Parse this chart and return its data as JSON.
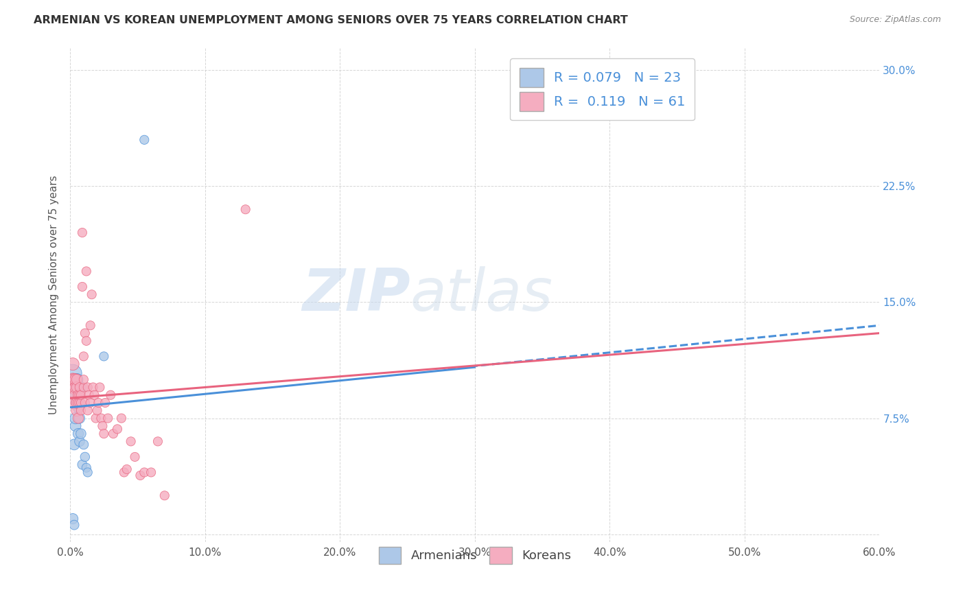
{
  "title": "ARMENIAN VS KOREAN UNEMPLOYMENT AMONG SENIORS OVER 75 YEARS CORRELATION CHART",
  "source": "Source: ZipAtlas.com",
  "ylabel": "Unemployment Among Seniors over 75 years",
  "xlim": [
    0.0,
    0.6
  ],
  "ylim": [
    -0.005,
    0.315
  ],
  "xticks": [
    0.0,
    0.1,
    0.2,
    0.3,
    0.4,
    0.5,
    0.6
  ],
  "xtick_labels": [
    "0.0%",
    "10.0%",
    "20.0%",
    "30.0%",
    "40.0%",
    "50.0%",
    "60.0%"
  ],
  "yticks": [
    0.0,
    0.075,
    0.15,
    0.225,
    0.3
  ],
  "ytick_labels": [
    "",
    "7.5%",
    "15.0%",
    "22.5%",
    "30.0%"
  ],
  "armenian_R": "0.079",
  "armenian_N": "23",
  "korean_R": "0.119",
  "korean_N": "61",
  "armenian_color": "#adc8e8",
  "korean_color": "#f5adc0",
  "trend_armenian_color": "#4a90d9",
  "trend_korean_color": "#e8637e",
  "watermark_zip": "ZIP",
  "watermark_atlas": "atlas",
  "armenian_x": [
    0.002,
    0.002,
    0.003,
    0.003,
    0.004,
    0.004,
    0.004,
    0.005,
    0.005,
    0.005,
    0.006,
    0.006,
    0.007,
    0.007,
    0.008,
    0.008,
    0.009,
    0.01,
    0.011,
    0.012,
    0.013,
    0.025,
    0.055
  ],
  "armenian_y": [
    0.104,
    0.01,
    0.006,
    0.058,
    0.07,
    0.075,
    0.09,
    0.085,
    0.095,
    0.1,
    0.065,
    0.082,
    0.06,
    0.075,
    0.065,
    0.095,
    0.045,
    0.058,
    0.05,
    0.043,
    0.04,
    0.115,
    0.255
  ],
  "armenian_sizes": [
    350,
    120,
    100,
    130,
    130,
    140,
    140,
    150,
    150,
    160,
    120,
    130,
    110,
    120,
    110,
    120,
    100,
    100,
    95,
    90,
    90,
    90,
    90
  ],
  "korean_x": [
    0.002,
    0.002,
    0.002,
    0.003,
    0.003,
    0.004,
    0.004,
    0.004,
    0.005,
    0.005,
    0.005,
    0.005,
    0.006,
    0.006,
    0.006,
    0.007,
    0.007,
    0.007,
    0.008,
    0.008,
    0.008,
    0.009,
    0.009,
    0.01,
    0.01,
    0.01,
    0.011,
    0.011,
    0.012,
    0.012,
    0.013,
    0.013,
    0.014,
    0.015,
    0.015,
    0.016,
    0.017,
    0.018,
    0.019,
    0.02,
    0.021,
    0.022,
    0.023,
    0.024,
    0.025,
    0.026,
    0.028,
    0.03,
    0.032,
    0.035,
    0.038,
    0.04,
    0.042,
    0.045,
    0.048,
    0.052,
    0.055,
    0.06,
    0.065,
    0.07,
    0.13
  ],
  "korean_y": [
    0.095,
    0.1,
    0.11,
    0.085,
    0.1,
    0.09,
    0.095,
    0.1,
    0.08,
    0.085,
    0.095,
    0.1,
    0.075,
    0.085,
    0.09,
    0.085,
    0.09,
    0.095,
    0.08,
    0.085,
    0.09,
    0.16,
    0.195,
    0.095,
    0.1,
    0.115,
    0.085,
    0.13,
    0.125,
    0.17,
    0.08,
    0.095,
    0.09,
    0.085,
    0.135,
    0.155,
    0.095,
    0.09,
    0.075,
    0.08,
    0.085,
    0.095,
    0.075,
    0.07,
    0.065,
    0.085,
    0.075,
    0.09,
    0.065,
    0.068,
    0.075,
    0.04,
    0.042,
    0.06,
    0.05,
    0.038,
    0.04,
    0.04,
    0.06,
    0.025,
    0.21
  ],
  "korean_sizes": [
    180,
    175,
    170,
    165,
    160,
    155,
    150,
    145,
    140,
    135,
    130,
    125,
    120,
    115,
    110,
    105,
    100,
    95,
    90,
    90,
    90,
    90,
    90,
    90,
    90,
    90,
    90,
    90,
    90,
    90,
    90,
    90,
    90,
    90,
    90,
    90,
    90,
    90,
    90,
    90,
    90,
    90,
    90,
    90,
    90,
    90,
    90,
    90,
    90,
    90,
    90,
    90,
    90,
    90,
    90,
    90,
    90,
    90,
    90,
    90,
    90
  ],
  "trend_arm_x0": 0.0,
  "trend_arm_x1": 0.3,
  "trend_arm_y0": 0.082,
  "trend_arm_y1": 0.108,
  "trend_arm_dash_x0": 0.28,
  "trend_arm_dash_x1": 0.6,
  "trend_arm_dash_y0": 0.107,
  "trend_arm_dash_y1": 0.135,
  "trend_kor_x0": 0.0,
  "trend_kor_x1": 0.6,
  "trend_kor_y0": 0.088,
  "trend_kor_y1": 0.13
}
